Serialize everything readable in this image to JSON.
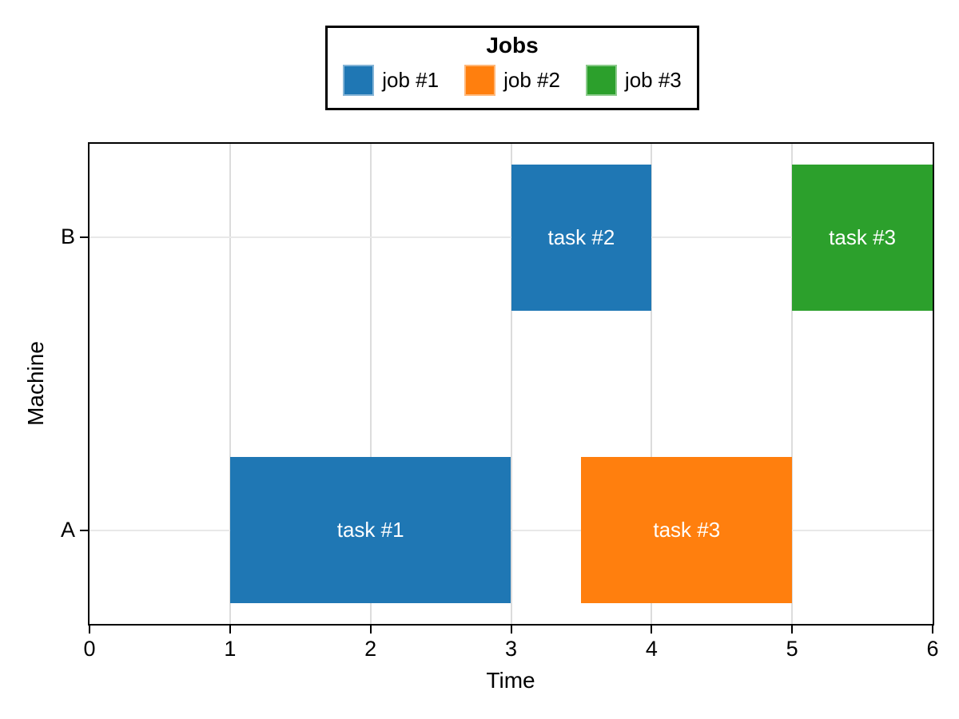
{
  "legend": {
    "title": "Jobs",
    "items": [
      {
        "label": "job #1",
        "color": "#1f77b4"
      },
      {
        "label": "job #2",
        "color": "#ff7f0e"
      },
      {
        "label": "job #3",
        "color": "#2ca02c"
      }
    ]
  },
  "chart_data": {
    "type": "bar",
    "subtype": "gantt",
    "title": "",
    "xlabel": "Time",
    "ylabel": "Machine",
    "categories": [
      "A",
      "B"
    ],
    "x_ticks": [
      0,
      1,
      2,
      3,
      4,
      5,
      6
    ],
    "xlim": [
      0,
      6
    ],
    "ylim": [
      -0.32,
      1.32
    ],
    "bar_thickness": 0.5,
    "grid": true,
    "legend_position": "top-center",
    "bars": [
      {
        "machine": "A",
        "label": "task #1",
        "job": "job #1",
        "start": 1,
        "end": 3,
        "color": "#1f77b4"
      },
      {
        "machine": "A",
        "label": "task #3",
        "job": "job #2",
        "start": 3.5,
        "end": 5,
        "color": "#ff7f0e"
      },
      {
        "machine": "B",
        "label": "task #2",
        "job": "job #1",
        "start": 3,
        "end": 4,
        "color": "#1f77b4"
      },
      {
        "machine": "B",
        "label": "task #3",
        "job": "job #3",
        "start": 5,
        "end": 6,
        "color": "#2ca02c"
      }
    ]
  }
}
